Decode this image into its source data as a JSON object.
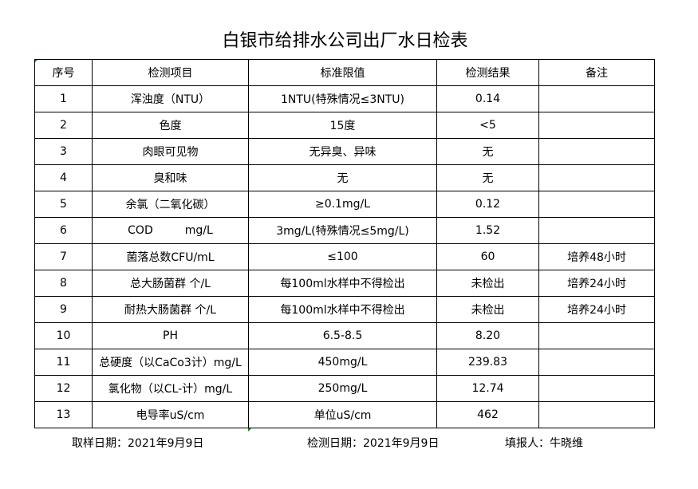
{
  "title": "白银市给排水公司出厂水日检表",
  "headers": [
    "序号",
    "检测项目",
    "标准限值",
    "检测结果",
    "备注"
  ],
  "rows": [
    [
      "1",
      "浑浊度（NTU）",
      "1NTU(特殊情况≤3NTU)",
      "0.14",
      ""
    ],
    [
      "2",
      "色度",
      "15度",
      "<5",
      ""
    ],
    [
      "3",
      "肉眼可见物",
      "无异臭、异味",
      "无",
      ""
    ],
    [
      "4",
      "臭和味",
      "无",
      "无",
      ""
    ],
    [
      "5",
      "余氯（二氧化碳）",
      "≥0.1mg/L",
      "0.12",
      ""
    ],
    [
      "6",
      "COD         mg/L",
      "3mg/L(特殊情况≤5mg/L)",
      "1.52",
      ""
    ],
    [
      "7",
      "菌落总数CFU/mL",
      "≤100",
      "60",
      "培养48小时"
    ],
    [
      "8",
      "总大肠菌群 个/L",
      "每100ml水样中不得检出",
      "未检出",
      "培养24小时"
    ],
    [
      "9",
      "耐热大肠菌群 个/L",
      "每100ml水样中不得检出",
      "未检出",
      "培养24小时"
    ],
    [
      "10",
      "PH",
      "6.5-8.5",
      "8.20",
      ""
    ],
    [
      "11",
      "总硬度（以CaCo3计）mg/L",
      "450mg/L",
      "239.83",
      ""
    ],
    [
      "12",
      "氯化物（以CL-计）mg/L",
      "250mg/L",
      "12.74",
      ""
    ],
    [
      "13",
      "电导率uS/cm",
      "单位uS/cm",
      "462",
      ""
    ]
  ],
  "footer": {
    "sample_date": "取样日期：2021年9月9日",
    "test_date": "检测日期：2021年9月9日",
    "reporter": "填报人：牛晓维"
  }
}
